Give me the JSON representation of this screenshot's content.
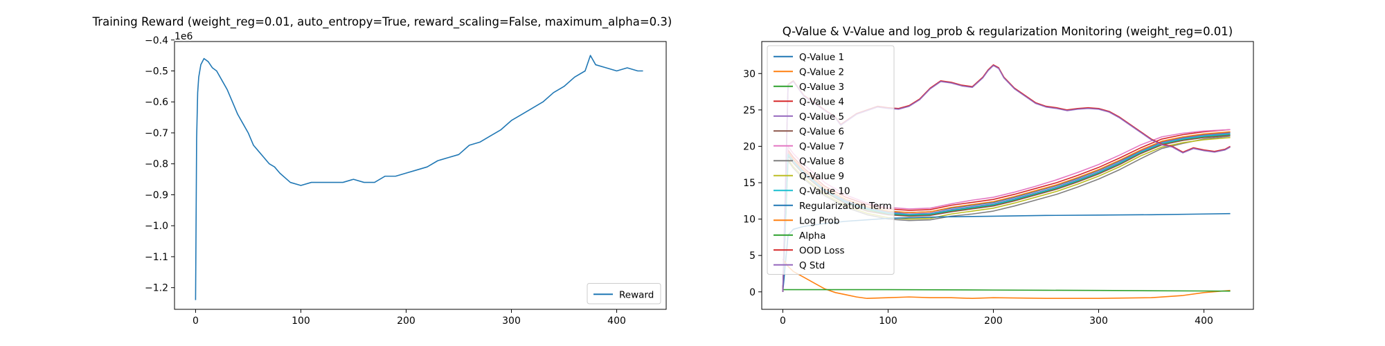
{
  "chart_data": [
    {
      "type": "line",
      "title": "Training Reward (weight_reg=0.01, auto_entropy=True, reward_scaling=False, maximum_alpha=0.3)",
      "xlabel": "",
      "ylabel": "",
      "y_offset_label": "1e6",
      "xlim": [
        -20,
        447
      ],
      "ylim": [
        -1.27,
        -0.405
      ],
      "x_ticks": [
        0,
        100,
        200,
        300,
        400
      ],
      "y_ticks": [
        -1.2,
        -1.1,
        -1.0,
        -0.9,
        -0.8,
        -0.7,
        -0.6,
        -0.5,
        -0.4
      ],
      "y_tick_labels": [
        "−1.2",
        "−1.1",
        "−1.0",
        "−0.9",
        "−0.8",
        "−0.7",
        "−0.6",
        "−0.5",
        "−0.4"
      ],
      "legend_position": "lower-right",
      "grid": false,
      "series": [
        {
          "name": "Reward",
          "color": "#1f77b4",
          "x": [
            0,
            1,
            2,
            3,
            5,
            8,
            12,
            16,
            20,
            25,
            30,
            35,
            40,
            45,
            50,
            55,
            60,
            65,
            70,
            75,
            80,
            90,
            100,
            110,
            120,
            130,
            140,
            150,
            160,
            170,
            180,
            190,
            200,
            210,
            220,
            230,
            240,
            250,
            260,
            270,
            280,
            290,
            300,
            310,
            320,
            330,
            340,
            350,
            360,
            370,
            375,
            380,
            390,
            400,
            410,
            420,
            425
          ],
          "y": [
            -1.24,
            -0.72,
            -0.57,
            -0.52,
            -0.48,
            -0.46,
            -0.47,
            -0.49,
            -0.5,
            -0.53,
            -0.56,
            -0.6,
            -0.64,
            -0.67,
            -0.7,
            -0.74,
            -0.76,
            -0.78,
            -0.8,
            -0.81,
            -0.83,
            -0.86,
            -0.87,
            -0.86,
            -0.86,
            -0.86,
            -0.86,
            -0.85,
            -0.86,
            -0.86,
            -0.84,
            -0.84,
            -0.83,
            -0.82,
            -0.81,
            -0.79,
            -0.78,
            -0.77,
            -0.74,
            -0.73,
            -0.71,
            -0.69,
            -0.66,
            -0.64,
            -0.62,
            -0.6,
            -0.57,
            -0.55,
            -0.52,
            -0.5,
            -0.45,
            -0.48,
            -0.49,
            -0.5,
            -0.49,
            -0.5,
            -0.5
          ]
        }
      ]
    },
    {
      "type": "line",
      "title": "Q-Value & V-Value and log_prob & regularization Monitoring (weight_reg=0.01)",
      "xlabel": "",
      "ylabel": "",
      "xlim": [
        -20,
        447
      ],
      "ylim": [
        -2.4,
        34.4
      ],
      "x_ticks": [
        0,
        100,
        200,
        300,
        400
      ],
      "y_ticks": [
        0,
        5,
        10,
        15,
        20,
        25,
        30
      ],
      "legend_position": "upper-left",
      "grid": false,
      "series": [
        {
          "name": "Q-Value 1",
          "color": "#1f77b4",
          "x": [
            0,
            5,
            10,
            20,
            40,
            60,
            80,
            100,
            120,
            140,
            160,
            180,
            200,
            220,
            240,
            260,
            280,
            300,
            320,
            340,
            360,
            380,
            400,
            425
          ],
          "y": [
            0,
            19.0,
            18.0,
            16.5,
            14.0,
            12.5,
            11.5,
            11.0,
            10.9,
            11.0,
            11.5,
            11.9,
            12.3,
            13.0,
            13.8,
            14.6,
            15.6,
            16.7,
            18.0,
            19.4,
            20.6,
            21.2,
            21.6,
            21.9
          ]
        },
        {
          "name": "Q-Value 2",
          "color": "#ff7f0e",
          "x": [
            0,
            5,
            10,
            20,
            40,
            60,
            80,
            100,
            120,
            140,
            160,
            180,
            200,
            220,
            240,
            260,
            280,
            300,
            320,
            340,
            360,
            380,
            400,
            425
          ],
          "y": [
            0,
            19.2,
            18.2,
            16.7,
            14.2,
            12.7,
            11.7,
            11.1,
            10.9,
            11.0,
            11.6,
            12.0,
            12.4,
            13.1,
            13.9,
            14.7,
            15.7,
            16.8,
            18.1,
            19.5,
            20.7,
            21.3,
            21.7,
            22.0
          ]
        },
        {
          "name": "Q-Value 3",
          "color": "#2ca02c",
          "x": [
            0,
            5,
            10,
            20,
            40,
            60,
            80,
            100,
            120,
            140,
            160,
            180,
            200,
            220,
            240,
            260,
            280,
            300,
            320,
            340,
            360,
            380,
            400,
            425
          ],
          "y": [
            0,
            18.8,
            17.8,
            16.2,
            13.8,
            12.2,
            11.3,
            10.7,
            10.5,
            10.6,
            11.1,
            11.5,
            11.9,
            12.6,
            13.4,
            14.2,
            15.2,
            16.3,
            17.6,
            19.1,
            20.3,
            20.9,
            21.3,
            21.6
          ]
        },
        {
          "name": "Q-Value 4",
          "color": "#d62728",
          "x": [
            0,
            5,
            10,
            20,
            40,
            60,
            80,
            100,
            120,
            140,
            160,
            180,
            200,
            220,
            240,
            260,
            280,
            300,
            320,
            340,
            360,
            380,
            400,
            425
          ],
          "y": [
            0,
            19.5,
            18.5,
            17.0,
            14.5,
            13.0,
            12.0,
            11.4,
            11.2,
            11.3,
            11.9,
            12.3,
            12.7,
            13.4,
            14.2,
            15.0,
            16.0,
            17.1,
            18.4,
            19.8,
            21.0,
            21.6,
            22.0,
            22.3
          ]
        },
        {
          "name": "Q-Value 5",
          "color": "#9467bd",
          "x": [
            0,
            5,
            10,
            20,
            40,
            60,
            80,
            100,
            120,
            140,
            160,
            180,
            200,
            220,
            240,
            260,
            280,
            300,
            320,
            340,
            360,
            380,
            400,
            425
          ],
          "y": [
            0,
            19.0,
            18.0,
            16.4,
            14.0,
            12.4,
            11.4,
            10.9,
            10.7,
            10.8,
            11.3,
            11.7,
            12.1,
            12.8,
            13.6,
            14.4,
            15.4,
            16.5,
            17.8,
            19.3,
            20.5,
            21.1,
            21.5,
            21.8
          ]
        },
        {
          "name": "Q-Value 6",
          "color": "#8c564b",
          "x": [
            0,
            5,
            10,
            20,
            40,
            60,
            80,
            100,
            120,
            140,
            160,
            180,
            200,
            220,
            240,
            260,
            280,
            300,
            320,
            340,
            360,
            380,
            400,
            425
          ],
          "y": [
            0,
            18.7,
            17.7,
            16.1,
            13.7,
            12.1,
            11.1,
            10.6,
            10.4,
            10.5,
            11.0,
            11.4,
            11.8,
            12.5,
            13.3,
            14.1,
            15.1,
            16.2,
            17.5,
            19.0,
            20.2,
            20.8,
            21.2,
            21.5
          ]
        },
        {
          "name": "Q-Value 7",
          "color": "#e377c2",
          "x": [
            0,
            5,
            10,
            20,
            40,
            60,
            80,
            100,
            120,
            140,
            160,
            180,
            200,
            220,
            240,
            260,
            280,
            300,
            320,
            340,
            360,
            380,
            400,
            425
          ],
          "y": [
            0,
            20.0,
            19.0,
            17.5,
            15.0,
            13.3,
            12.2,
            11.6,
            11.4,
            11.5,
            12.1,
            12.6,
            13.0,
            13.7,
            14.5,
            15.4,
            16.4,
            17.5,
            18.8,
            20.2,
            21.3,
            21.8,
            22.1,
            22.3
          ]
        },
        {
          "name": "Q-Value 8",
          "color": "#7f7f7f",
          "x": [
            0,
            5,
            10,
            20,
            40,
            60,
            80,
            100,
            120,
            140,
            160,
            180,
            200,
            220,
            240,
            260,
            280,
            300,
            320,
            340,
            360,
            380,
            400,
            425
          ],
          "y": [
            0,
            18.0,
            17.0,
            15.5,
            13.2,
            11.6,
            10.6,
            10.0,
            9.8,
            9.9,
            10.4,
            10.7,
            11.1,
            11.8,
            12.6,
            13.4,
            14.4,
            15.5,
            16.8,
            18.3,
            19.7,
            20.4,
            21.0,
            21.4
          ]
        },
        {
          "name": "Q-Value 9",
          "color": "#bcbd22",
          "x": [
            0,
            5,
            10,
            20,
            40,
            60,
            80,
            100,
            120,
            140,
            160,
            180,
            200,
            220,
            240,
            260,
            280,
            300,
            320,
            340,
            360,
            380,
            400,
            425
          ],
          "y": [
            0,
            18.2,
            17.2,
            15.7,
            13.4,
            11.8,
            10.8,
            10.2,
            10.0,
            10.1,
            10.7,
            11.1,
            11.5,
            12.2,
            13.0,
            13.8,
            14.8,
            15.9,
            17.2,
            18.7,
            19.9,
            20.5,
            20.9,
            21.2
          ]
        },
        {
          "name": "Q-Value 10",
          "color": "#17becf",
          "x": [
            0,
            5,
            10,
            20,
            40,
            60,
            80,
            100,
            120,
            140,
            160,
            180,
            200,
            220,
            240,
            260,
            280,
            300,
            320,
            340,
            360,
            380,
            400,
            425
          ],
          "y": [
            0,
            18.9,
            17.9,
            16.3,
            13.9,
            12.3,
            11.4,
            10.8,
            10.6,
            10.7,
            11.2,
            11.6,
            12.0,
            12.7,
            13.5,
            14.3,
            15.3,
            16.4,
            17.7,
            19.2,
            20.4,
            21.0,
            21.4,
            21.7
          ]
        },
        {
          "name": "Regularization Term",
          "color": "#1f77b4",
          "x": [
            0,
            5,
            10,
            20,
            40,
            60,
            80,
            100,
            150,
            200,
            250,
            300,
            350,
            400,
            425
          ],
          "y": [
            0,
            7.8,
            8.6,
            9.0,
            9.4,
            9.7,
            9.9,
            10.1,
            10.3,
            10.4,
            10.5,
            10.55,
            10.6,
            10.7,
            10.75
          ]
        },
        {
          "name": "Log Prob",
          "color": "#ff7f0e",
          "x": [
            0,
            5,
            10,
            20,
            30,
            40,
            50,
            60,
            70,
            80,
            100,
            120,
            140,
            160,
            180,
            200,
            250,
            300,
            350,
            380,
            400,
            425
          ],
          "y": [
            4.5,
            3.5,
            2.8,
            2.0,
            1.2,
            0.4,
            -0.1,
            -0.4,
            -0.7,
            -0.9,
            -0.8,
            -0.7,
            -0.8,
            -0.8,
            -0.9,
            -0.8,
            -0.9,
            -0.9,
            -0.8,
            -0.5,
            -0.1,
            0.2
          ]
        },
        {
          "name": "Alpha",
          "color": "#2ca02c",
          "x": [
            0,
            1,
            50,
            100,
            150,
            200,
            250,
            300,
            350,
            400,
            425
          ],
          "y": [
            0.3,
            0.3,
            0.3,
            0.3,
            0.28,
            0.25,
            0.22,
            0.2,
            0.15,
            0.12,
            0.1
          ]
        },
        {
          "name": "OOD Loss",
          "color": "#d62728",
          "x": [
            0,
            5,
            10,
            15,
            20,
            30,
            40,
            50,
            55,
            60,
            70,
            80,
            90,
            100,
            110,
            120,
            130,
            140,
            150,
            160,
            170,
            180,
            190,
            195,
            200,
            205,
            210,
            220,
            230,
            240,
            250,
            260,
            270,
            280,
            290,
            300,
            310,
            320,
            330,
            340,
            350,
            360,
            370,
            380,
            390,
            400,
            410,
            420,
            425
          ],
          "y": [
            0,
            28.5,
            29.0,
            28.0,
            27.0,
            26.0,
            25.0,
            24.0,
            23.0,
            23.5,
            24.5,
            25.0,
            25.5,
            25.3,
            25.2,
            25.6,
            26.5,
            28.0,
            29.0,
            28.8,
            28.4,
            28.2,
            29.5,
            30.5,
            31.2,
            30.8,
            29.5,
            28.0,
            27.0,
            26.0,
            25.5,
            25.3,
            25.0,
            25.2,
            25.3,
            25.2,
            24.8,
            24.0,
            23.0,
            22.0,
            21.0,
            20.3,
            20.0,
            19.2,
            19.8,
            19.5,
            19.3,
            19.6,
            20.0
          ]
        },
        {
          "name": "Q Std",
          "color": "#9467bd",
          "x": [
            0,
            5,
            10,
            15,
            20,
            30,
            40,
            50,
            55,
            60,
            70,
            80,
            90,
            100,
            110,
            120,
            130,
            140,
            150,
            160,
            170,
            180,
            190,
            195,
            200,
            205,
            210,
            220,
            230,
            240,
            250,
            260,
            270,
            280,
            290,
            300,
            310,
            320,
            330,
            340,
            350,
            360,
            370,
            380,
            390,
            400,
            410,
            420,
            425
          ],
          "y": [
            0,
            28.4,
            28.9,
            27.9,
            26.9,
            25.9,
            24.9,
            23.9,
            22.9,
            23.4,
            24.4,
            24.9,
            25.4,
            25.2,
            25.1,
            25.5,
            26.4,
            27.9,
            28.9,
            28.7,
            28.3,
            28.1,
            29.4,
            30.4,
            31.1,
            30.7,
            29.4,
            27.9,
            26.9,
            25.9,
            25.4,
            25.2,
            24.9,
            25.1,
            25.2,
            25.1,
            24.7,
            23.9,
            22.9,
            21.9,
            20.9,
            20.2,
            19.9,
            19.1,
            19.7,
            19.4,
            19.2,
            19.5,
            19.9
          ]
        }
      ]
    }
  ]
}
